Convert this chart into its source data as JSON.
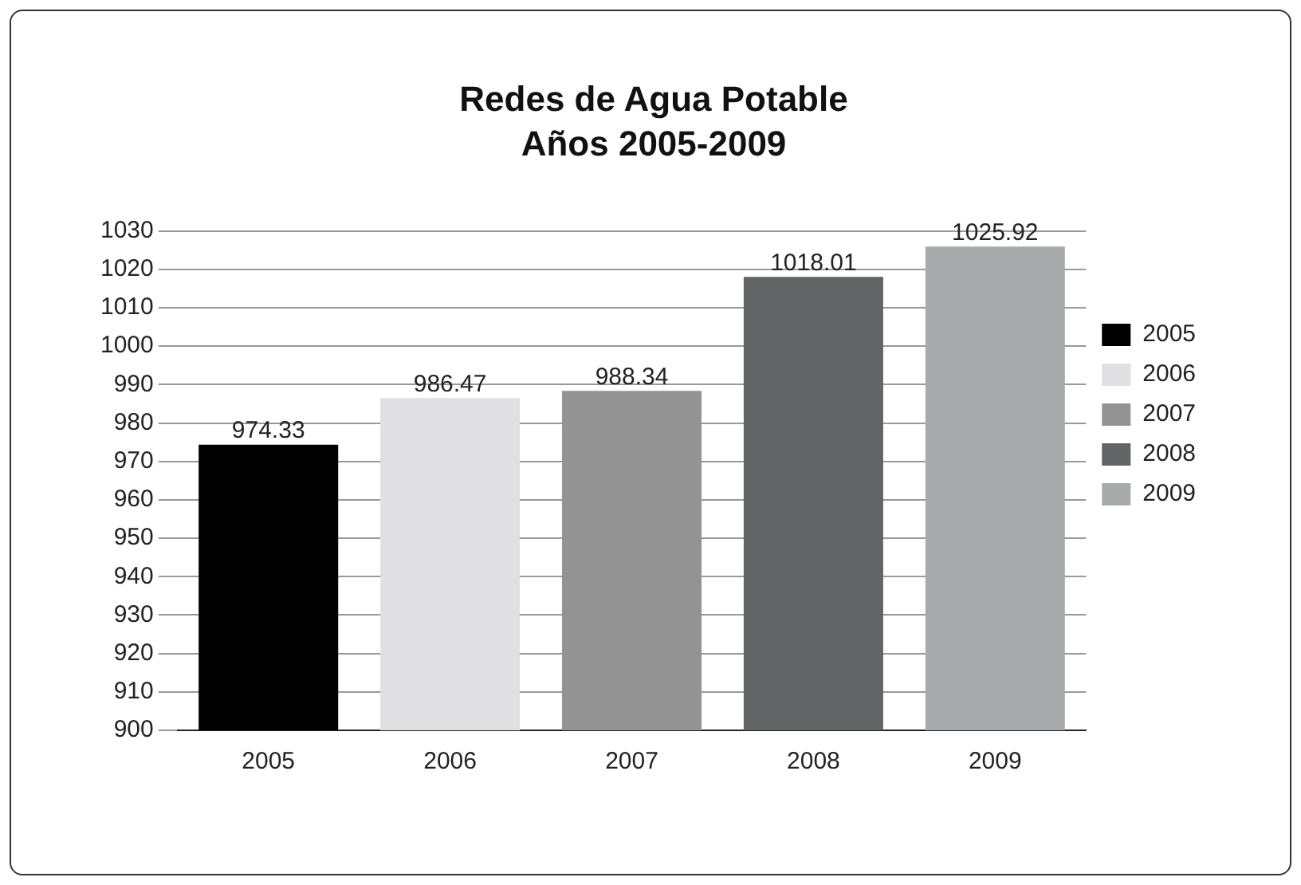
{
  "chart_data": {
    "type": "bar",
    "title": "Redes de Agua Potable",
    "subtitle": "Años 2005-2009",
    "categories": [
      "2005",
      "2006",
      "2007",
      "2008",
      "2009"
    ],
    "series": [
      {
        "name": "2005",
        "color": "#000000",
        "values": [
          974.33,
          null,
          null,
          null,
          null
        ]
      },
      {
        "name": "2006",
        "color": "#e0e0e2",
        "values": [
          null,
          986.47,
          null,
          null,
          null
        ]
      },
      {
        "name": "2007",
        "color": "#939393",
        "values": [
          null,
          null,
          988.34,
          null,
          null
        ]
      },
      {
        "name": "2008",
        "color": "#636466",
        "values": [
          null,
          null,
          null,
          1018.01,
          null
        ]
      },
      {
        "name": "2009",
        "color": "#a9aaac",
        "values": [
          null,
          null,
          null,
          null,
          1025.92
        ]
      }
    ],
    "ylim": [
      900,
      1030
    ],
    "yticks": [
      900,
      910,
      920,
      930,
      940,
      950,
      960,
      970,
      980,
      990,
      1000,
      1010,
      1020,
      1030
    ],
    "grid": "y",
    "legend": "right",
    "data_labels": true
  }
}
